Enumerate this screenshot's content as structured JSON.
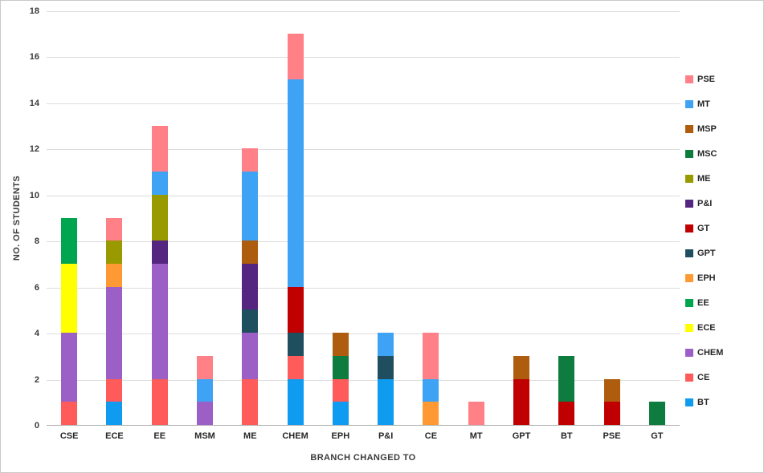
{
  "chart_data": {
    "type": "bar",
    "stacked": true,
    "title": "",
    "xlabel": "BRANCH CHANGED TO",
    "ylabel": "NO. OF STUDENTS",
    "ylim": [
      0,
      18
    ],
    "ytick_step": 2,
    "grid": true,
    "legend_position": "right",
    "categories": [
      "CSE",
      "ECE",
      "EE",
      "MSM",
      "ME",
      "CHEM",
      "EPH",
      "P&I",
      "CE",
      "MT",
      "GPT",
      "BT",
      "PSE",
      "GT"
    ],
    "series": [
      {
        "name": "BT",
        "color": "#0e9bf0",
        "values": [
          0,
          1,
          0,
          0,
          0,
          2,
          1,
          2,
          0,
          0,
          0,
          0,
          0,
          0
        ]
      },
      {
        "name": "CE",
        "color": "#ff5b5b",
        "values": [
          1,
          1,
          2,
          0,
          2,
          1,
          1,
          0,
          0,
          0,
          0,
          0,
          0,
          0
        ]
      },
      {
        "name": "CHEM",
        "color": "#9b5fc6",
        "values": [
          3,
          4,
          5,
          1,
          2,
          0,
          0,
          0,
          0,
          0,
          0,
          0,
          0,
          0
        ]
      },
      {
        "name": "ECE",
        "color": "#ffff00",
        "values": [
          3,
          0,
          0,
          0,
          0,
          0,
          0,
          0,
          0,
          0,
          0,
          0,
          0,
          0
        ]
      },
      {
        "name": "EE",
        "color": "#00a550",
        "values": [
          2,
          0,
          0,
          0,
          0,
          0,
          0,
          0,
          0,
          0,
          0,
          0,
          0,
          0
        ]
      },
      {
        "name": "EPH",
        "color": "#ff9933",
        "values": [
          0,
          1,
          0,
          0,
          0,
          0,
          0,
          0,
          1,
          0,
          0,
          0,
          0,
          0
        ]
      },
      {
        "name": "GPT",
        "color": "#1f4e5f",
        "values": [
          0,
          0,
          0,
          0,
          1,
          1,
          0,
          1,
          0,
          0,
          0,
          0,
          0,
          0
        ]
      },
      {
        "name": "GT",
        "color": "#c00000",
        "values": [
          0,
          0,
          0,
          0,
          0,
          2,
          0,
          0,
          0,
          0,
          2,
          1,
          1,
          0
        ]
      },
      {
        "name": "P&I",
        "color": "#55267f",
        "values": [
          0,
          0,
          1,
          0,
          2,
          0,
          0,
          0,
          0,
          0,
          0,
          0,
          0,
          0
        ]
      },
      {
        "name": "ME",
        "color": "#999900",
        "values": [
          0,
          1,
          2,
          0,
          0,
          0,
          0,
          0,
          0,
          0,
          0,
          0,
          0,
          0
        ]
      },
      {
        "name": "MSC",
        "color": "#0e7b3f",
        "values": [
          0,
          0,
          0,
          0,
          0,
          0,
          1,
          0,
          0,
          0,
          0,
          2,
          0,
          1
        ]
      },
      {
        "name": "MSP",
        "color": "#ae5c0e",
        "values": [
          0,
          0,
          0,
          0,
          1,
          0,
          1,
          0,
          0,
          0,
          1,
          0,
          1,
          0
        ]
      },
      {
        "name": "MT",
        "color": "#3fa3f5",
        "values": [
          0,
          0,
          1,
          1,
          3,
          9,
          0,
          1,
          1,
          0,
          0,
          0,
          0,
          0
        ]
      },
      {
        "name": "PSE",
        "color": "#ff8086",
        "values": [
          0,
          1,
          2,
          1,
          1,
          2,
          0,
          0,
          2,
          1,
          0,
          0,
          0,
          0
        ]
      }
    ],
    "totals": {
      "CSE": 9,
      "ECE": 9,
      "EE": 13,
      "MSM": 3,
      "ME": 12,
      "CHEM": 17,
      "EPH": 4,
      "P&I": 4,
      "CE": 4,
      "MT": 1,
      "GPT": 3,
      "BT": 3,
      "PSE": 2,
      "GT": 1
    },
    "legend_order_top_to_bottom": [
      "PSE",
      "MT",
      "MSP",
      "MSC",
      "ME",
      "P&I",
      "GT",
      "GPT",
      "EPH",
      "EE",
      "ECE",
      "CHEM",
      "CE",
      "BT"
    ]
  }
}
